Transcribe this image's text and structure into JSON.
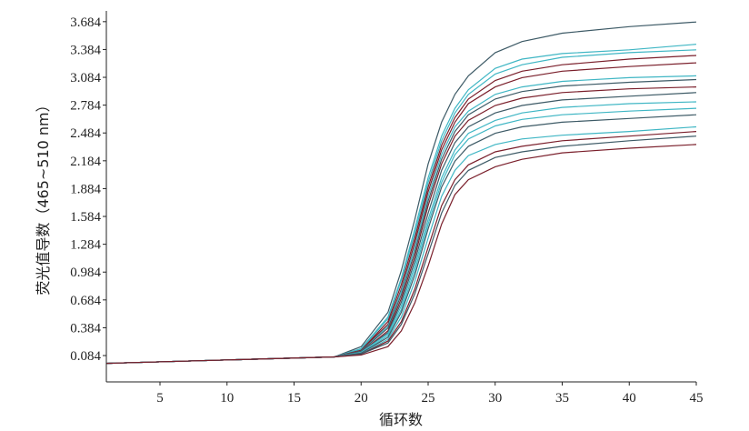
{
  "chart_data": {
    "type": "line",
    "xlabel": "循环数",
    "ylabel": "荧光值导数（465~510 nm）",
    "xlim": [
      1,
      45
    ],
    "ylim": [
      -0.2,
      3.8
    ],
    "x_ticks": [
      "5",
      "10",
      "15",
      "20",
      "25",
      "30",
      "35",
      "40",
      "45"
    ],
    "y_ticks": [
      "0.084",
      "0.384",
      "0.684",
      "0.984",
      "1.284",
      "1.584",
      "1.884",
      "2.184",
      "2.484",
      "2.784",
      "3.084",
      "3.384",
      "3.684"
    ],
    "grid": false,
    "legend": "none",
    "colors": {
      "teal": "#3fb6c4",
      "maroon": "#7a1f2b",
      "slate": "#3d5a66",
      "axis": "#222222"
    },
    "series": [
      {
        "color": "#3d5a66",
        "x": [
          1,
          18,
          20,
          22,
          23,
          24,
          25,
          26,
          27,
          28,
          30,
          32,
          35,
          40,
          45
        ],
        "y": [
          0.0,
          0.07,
          0.18,
          0.55,
          1.0,
          1.55,
          2.15,
          2.6,
          2.9,
          3.1,
          3.35,
          3.47,
          3.56,
          3.63,
          3.68
        ]
      },
      {
        "color": "#3fb6c4",
        "x": [
          1,
          18,
          20,
          22,
          23,
          24,
          25,
          26,
          27,
          28,
          30,
          32,
          35,
          40,
          45
        ],
        "y": [
          0.0,
          0.07,
          0.16,
          0.5,
          0.92,
          1.45,
          2.0,
          2.45,
          2.75,
          2.95,
          3.18,
          3.28,
          3.34,
          3.38,
          3.44
        ]
      },
      {
        "color": "#3fb6c4",
        "x": [
          1,
          18,
          20,
          22,
          23,
          24,
          25,
          26,
          27,
          28,
          30,
          32,
          35,
          40,
          45
        ],
        "y": [
          0.0,
          0.07,
          0.15,
          0.48,
          0.9,
          1.4,
          1.95,
          2.4,
          2.7,
          2.9,
          3.12,
          3.22,
          3.3,
          3.35,
          3.38
        ]
      },
      {
        "color": "#7a1f2b",
        "x": [
          1,
          18,
          20,
          22,
          23,
          24,
          25,
          26,
          27,
          28,
          30,
          32,
          35,
          40,
          45
        ],
        "y": [
          0.0,
          0.07,
          0.14,
          0.45,
          0.85,
          1.35,
          1.9,
          2.35,
          2.65,
          2.85,
          3.05,
          3.15,
          3.22,
          3.28,
          3.32
        ]
      },
      {
        "color": "#7a1f2b",
        "x": [
          1,
          18,
          20,
          22,
          23,
          24,
          25,
          26,
          27,
          28,
          30,
          32,
          35,
          40,
          45
        ],
        "y": [
          0.0,
          0.07,
          0.14,
          0.42,
          0.8,
          1.3,
          1.85,
          2.3,
          2.6,
          2.8,
          2.98,
          3.08,
          3.15,
          3.2,
          3.24
        ]
      },
      {
        "color": "#3fb6c4",
        "x": [
          1,
          18,
          20,
          22,
          23,
          24,
          25,
          26,
          27,
          28,
          30,
          32,
          35,
          40,
          45
        ],
        "y": [
          0.0,
          0.07,
          0.13,
          0.4,
          0.78,
          1.25,
          1.8,
          2.25,
          2.55,
          2.72,
          2.9,
          2.98,
          3.04,
          3.08,
          3.1
        ]
      },
      {
        "color": "#3d5a66",
        "x": [
          1,
          18,
          20,
          22,
          23,
          24,
          25,
          26,
          27,
          28,
          30,
          32,
          35,
          40,
          45
        ],
        "y": [
          0.0,
          0.07,
          0.13,
          0.38,
          0.74,
          1.2,
          1.75,
          2.2,
          2.5,
          2.68,
          2.85,
          2.93,
          2.99,
          3.03,
          3.06
        ]
      },
      {
        "color": "#7a1f2b",
        "x": [
          1,
          18,
          20,
          22,
          23,
          24,
          25,
          26,
          27,
          28,
          30,
          32,
          35,
          40,
          45
        ],
        "y": [
          0.0,
          0.07,
          0.12,
          0.35,
          0.7,
          1.15,
          1.7,
          2.15,
          2.45,
          2.62,
          2.78,
          2.86,
          2.92,
          2.96,
          2.98
        ]
      },
      {
        "color": "#3d5a66",
        "x": [
          1,
          18,
          20,
          22,
          23,
          24,
          25,
          26,
          27,
          28,
          30,
          32,
          35,
          40,
          45
        ],
        "y": [
          0.0,
          0.07,
          0.12,
          0.33,
          0.66,
          1.1,
          1.62,
          2.08,
          2.38,
          2.55,
          2.7,
          2.78,
          2.84,
          2.88,
          2.92
        ]
      },
      {
        "color": "#3fb6c4",
        "x": [
          1,
          18,
          20,
          22,
          23,
          24,
          25,
          26,
          27,
          28,
          30,
          32,
          35,
          40,
          45
        ],
        "y": [
          0.0,
          0.07,
          0.12,
          0.32,
          0.62,
          1.05,
          1.55,
          2.0,
          2.3,
          2.48,
          2.62,
          2.7,
          2.76,
          2.8,
          2.82
        ]
      },
      {
        "color": "#3fb6c4",
        "x": [
          1,
          18,
          20,
          22,
          23,
          24,
          25,
          26,
          27,
          28,
          30,
          32,
          35,
          40,
          45
        ],
        "y": [
          0.0,
          0.07,
          0.11,
          0.3,
          0.58,
          1.0,
          1.5,
          1.95,
          2.25,
          2.42,
          2.56,
          2.63,
          2.68,
          2.72,
          2.75
        ]
      },
      {
        "color": "#3d5a66",
        "x": [
          1,
          18,
          20,
          22,
          23,
          24,
          25,
          26,
          27,
          28,
          30,
          32,
          35,
          40,
          45
        ],
        "y": [
          0.0,
          0.07,
          0.11,
          0.28,
          0.55,
          0.95,
          1.45,
          1.9,
          2.18,
          2.34,
          2.48,
          2.55,
          2.6,
          2.64,
          2.68
        ]
      },
      {
        "color": "#3fb6c4",
        "x": [
          1,
          18,
          20,
          22,
          23,
          24,
          25,
          26,
          27,
          28,
          30,
          32,
          35,
          40,
          45
        ],
        "y": [
          0.0,
          0.07,
          0.1,
          0.26,
          0.5,
          0.88,
          1.35,
          1.8,
          2.08,
          2.24,
          2.36,
          2.42,
          2.46,
          2.5,
          2.55
        ]
      },
      {
        "color": "#7a1f2b",
        "x": [
          1,
          18,
          20,
          22,
          23,
          24,
          25,
          26,
          27,
          28,
          30,
          32,
          35,
          40,
          45
        ],
        "y": [
          0.0,
          0.07,
          0.1,
          0.24,
          0.45,
          0.8,
          1.25,
          1.7,
          1.98,
          2.14,
          2.28,
          2.34,
          2.4,
          2.45,
          2.5
        ]
      },
      {
        "color": "#3d5a66",
        "x": [
          1,
          18,
          20,
          22,
          23,
          24,
          25,
          26,
          27,
          28,
          30,
          32,
          35,
          40,
          45
        ],
        "y": [
          0.0,
          0.07,
          0.1,
          0.22,
          0.42,
          0.75,
          1.18,
          1.62,
          1.92,
          2.08,
          2.22,
          2.28,
          2.34,
          2.4,
          2.45
        ]
      },
      {
        "color": "#7a1f2b",
        "x": [
          1,
          18,
          20,
          22,
          23,
          24,
          25,
          26,
          27,
          28,
          30,
          32,
          35,
          40,
          45
        ],
        "y": [
          0.0,
          0.07,
          0.09,
          0.18,
          0.35,
          0.65,
          1.05,
          1.5,
          1.82,
          1.98,
          2.12,
          2.2,
          2.27,
          2.32,
          2.36
        ]
      }
    ]
  }
}
